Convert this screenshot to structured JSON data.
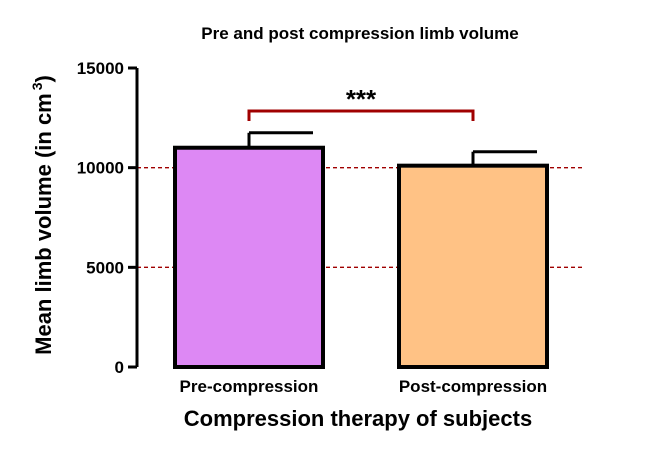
{
  "chart_data": {
    "type": "bar",
    "title": "Pre and post compression limb volume",
    "xlabel": "Compression therapy of subjects",
    "ylabel": {
      "main": "Mean limb volume (in cm",
      "superscript": "3",
      "close": ")"
    },
    "categories": [
      "Pre-compression",
      "Post-compression"
    ],
    "values": [
      11000,
      10100
    ],
    "errors": [
      750,
      700
    ],
    "ylim": [
      0,
      15000
    ],
    "yticks": [
      0,
      5000,
      10000,
      15000
    ],
    "ytick_labels": [
      "0",
      "5000",
      "10000",
      "15000"
    ],
    "reference_lines": [
      5000,
      10000
    ],
    "significance": {
      "from": "Pre-compression",
      "to": "Post-compression",
      "label": "***"
    },
    "colors": {
      "bars": [
        "#dd88f4",
        "#ffc285"
      ],
      "bar_outline": "#000000",
      "reference_line": "#a00000",
      "bracket": "#a00000"
    }
  }
}
